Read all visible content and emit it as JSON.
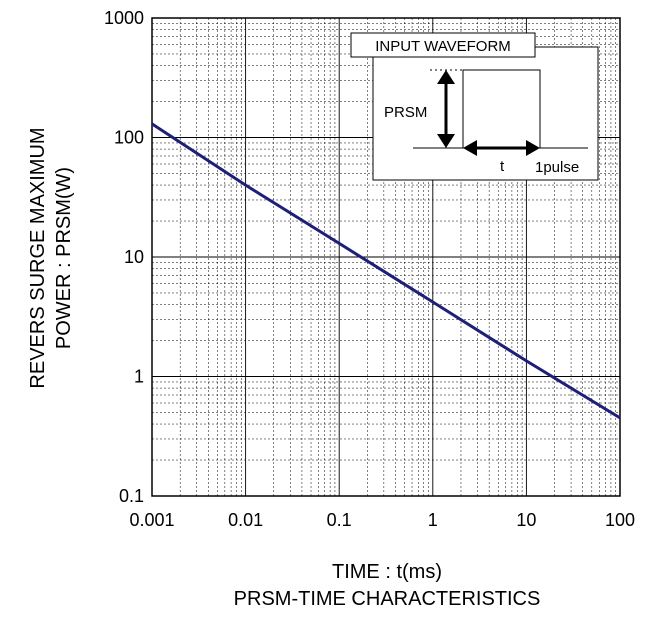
{
  "chart_data": {
    "type": "line",
    "x_scale": "log",
    "y_scale": "log",
    "xlim": [
      0.001,
      100
    ],
    "ylim": [
      0.1,
      1000
    ],
    "x_ticks": [
      "0.001",
      "0.01",
      "0.1",
      "1",
      "10",
      "100"
    ],
    "y_ticks": [
      "0.1",
      "1",
      "10",
      "100",
      "1000"
    ],
    "xlabel": "TIME : t(ms)",
    "ylabel_line1": "REVERS SURGE MAXIMUM",
    "ylabel_line2": "POWER : PRSM(W)",
    "title": "PRSM-TIME CHARACTERISTICS",
    "grid": true,
    "line_color": "#1f1f7a",
    "series": [
      {
        "x": [
          0.001,
          0.01,
          0.1,
          1,
          10,
          100
        ],
        "y": [
          130,
          40,
          13,
          4.2,
          1.35,
          0.45
        ]
      }
    ],
    "inset": {
      "title": "INPUT WAVEFORM",
      "amplitude_label": "PRSM",
      "time_label": "t",
      "pulse_label": "1pulse"
    }
  }
}
